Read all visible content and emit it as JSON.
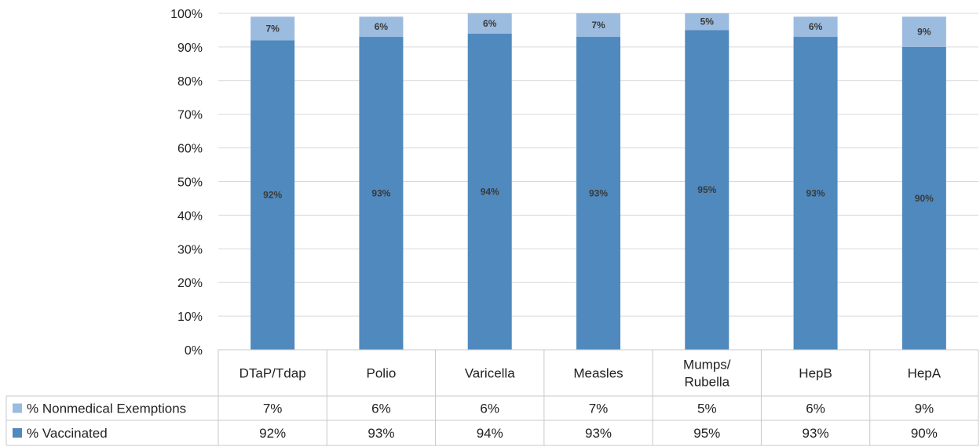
{
  "chart_data": {
    "type": "bar",
    "stacked": true,
    "categories": [
      "DTaP/Tdap",
      "Polio",
      "Varicella",
      "Measles",
      "Mumps/\nRubella",
      "HepB",
      "HepA"
    ],
    "series": [
      {
        "name": "% Vaccinated",
        "values": [
          92,
          93,
          94,
          93,
          95,
          93,
          90
        ],
        "color": "#4f89bd",
        "labels": [
          "92%",
          "93%",
          "94%",
          "93%",
          "95%",
          "93%",
          "90%"
        ]
      },
      {
        "name": "% Nonmedical Exemptions",
        "values": [
          7,
          6,
          6,
          7,
          5,
          6,
          9
        ],
        "color": "#9bbbdf",
        "labels": [
          "7%",
          "6%",
          "6%",
          "7%",
          "5%",
          "6%",
          "9%"
        ]
      }
    ],
    "ylim": [
      0,
      100
    ],
    "yticks": [
      "0%",
      "10%",
      "20%",
      "30%",
      "40%",
      "50%",
      "60%",
      "70%",
      "80%",
      "90%",
      "100%"
    ],
    "grid": true,
    "legend": "data-table-below"
  }
}
